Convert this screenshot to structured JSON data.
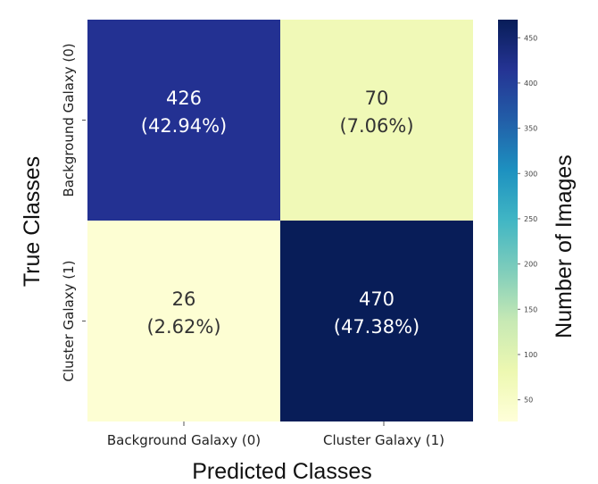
{
  "chart_data": {
    "type": "heatmap",
    "xlabel": "Predicted Classes",
    "ylabel": "True Classes",
    "x_categories": [
      "Background Galaxy (0)",
      "Cluster Galaxy (1)"
    ],
    "y_categories": [
      "Background Galaxy (0)",
      "Cluster Galaxy (1)"
    ],
    "values": [
      [
        426,
        70
      ],
      [
        26,
        470
      ]
    ],
    "percent_labels": [
      [
        "(42.94%)",
        "(7.06%)"
      ],
      [
        "(2.62%)",
        "(47.38%)"
      ]
    ],
    "count_labels": [
      [
        "426",
        "70"
      ],
      [
        "26",
        "470"
      ]
    ],
    "colormap": "YlGnBu",
    "colorbar": {
      "label": "Number of Images",
      "range": [
        26,
        470
      ],
      "ticks": [
        50,
        100,
        150,
        200,
        250,
        300,
        350,
        400,
        450
      ]
    },
    "colors": {
      "cell_00": "#233192",
      "cell_01": "#f0f9b7",
      "cell_10": "#fdfed3",
      "cell_11": "#081d58"
    }
  }
}
